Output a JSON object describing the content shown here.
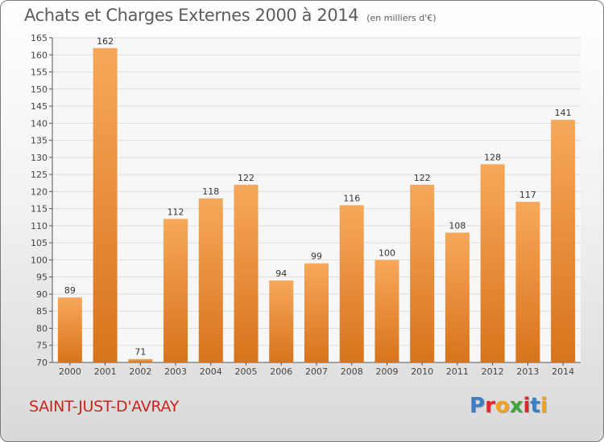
{
  "header": {
    "title": "Achats et Charges Externes 2000 à 2014",
    "subtitle": "(en milliers d'€)"
  },
  "footer": {
    "city": "SAINT-JUST-D'AVRAY",
    "logo": [
      "P",
      "r",
      "o",
      "x",
      "i",
      "t",
      "i"
    ]
  },
  "colors": {
    "bar_top": "#f7a85a",
    "bar_bottom": "#d8731c",
    "city": "#c8261c",
    "logo": [
      "#3a7ec6",
      "#e3262b",
      "#f3a21d",
      "#3fa535",
      "#e3262b",
      "#3a7ec6",
      "#f3a21d"
    ]
  },
  "chart_data": {
    "type": "bar",
    "title": "Achats et Charges Externes 2000 à 2014",
    "subtitle": "(en milliers d'€)",
    "xlabel": "",
    "ylabel": "",
    "categories": [
      "2000",
      "2001",
      "2002",
      "2003",
      "2004",
      "2005",
      "2006",
      "2007",
      "2008",
      "2009",
      "2010",
      "2011",
      "2012",
      "2013",
      "2014"
    ],
    "values": [
      89,
      162,
      71,
      112,
      118,
      122,
      94,
      99,
      116,
      100,
      122,
      108,
      128,
      117,
      141
    ],
    "ylim": [
      70,
      165
    ],
    "yticks": [
      70,
      75,
      80,
      85,
      90,
      95,
      100,
      105,
      110,
      115,
      120,
      125,
      130,
      135,
      140,
      145,
      150,
      155,
      160,
      165
    ],
    "grid": true,
    "legend": "none"
  }
}
